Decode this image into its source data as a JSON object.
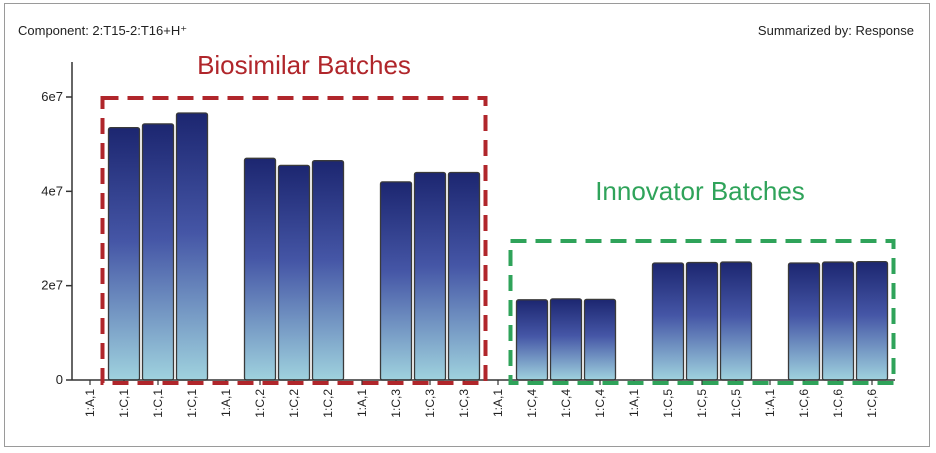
{
  "header": {
    "component": "Component: 2:T15-2:T16+H⁺",
    "summarized_by": "Summarized by: Response"
  },
  "colors": {
    "bar_top": "#1c2670",
    "bar_bottom": "#9fd2de",
    "bar_stroke": "#3a3a3a",
    "biosimilar_box": "#b0262b",
    "innovator_box": "#2fa35a",
    "axis": "#333333"
  },
  "chart_data": {
    "type": "bar",
    "title": "",
    "xlabel": "",
    "ylabel": "",
    "ylim": [
      0,
      65000000
    ],
    "yticks": [
      {
        "value": 0,
        "label": "0"
      },
      {
        "value": 20000000,
        "label": "2e7"
      },
      {
        "value": 40000000,
        "label": "4e7"
      },
      {
        "value": 60000000,
        "label": "6e7"
      }
    ],
    "categories": [
      "1:A,1",
      "1:C,1",
      "1:C,1",
      "1:C,1",
      "1:A,1",
      "1:C,2",
      "1:C,2",
      "1:C,2",
      "1:A,1",
      "1:C,3",
      "1:C,3",
      "1:C,3",
      "1:A,1",
      "1:C,4",
      "1:C,4",
      "1:C,4",
      "1:A,1",
      "1:C,5",
      "1:C,5",
      "1:C,5",
      "1:A,1",
      "1:C,6",
      "1:C,6",
      "1:C,6"
    ],
    "values": [
      0,
      53500000,
      54300000,
      56600000,
      0,
      47000000,
      45500000,
      46500000,
      0,
      42000000,
      44000000,
      44000000,
      0,
      17000000,
      17200000,
      17100000,
      0,
      24800000,
      24900000,
      25000000,
      0,
      24800000,
      25000000,
      25100000
    ],
    "grid": false,
    "annotations": [
      {
        "text": "Biosimilar Batches",
        "color": "#b0262b",
        "from": 1,
        "to": 11
      },
      {
        "text": "Innovator Batches",
        "color": "#2fa35a",
        "from": 13,
        "to": 23
      }
    ]
  }
}
